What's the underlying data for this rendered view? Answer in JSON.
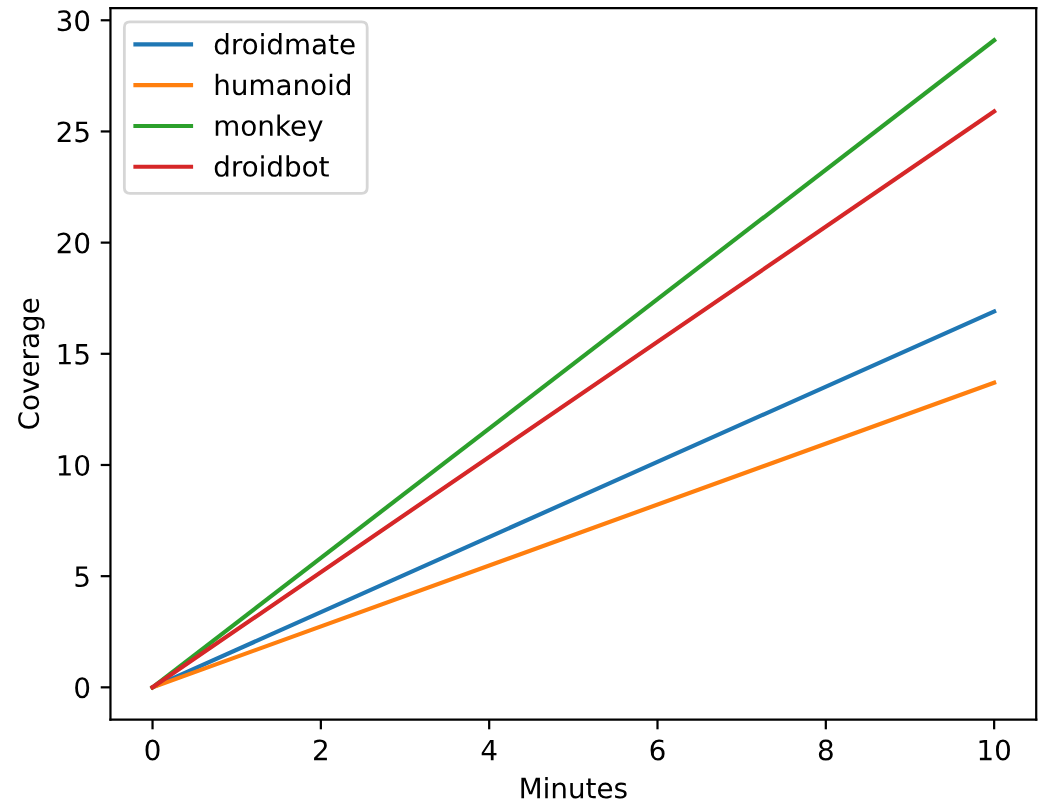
{
  "chart_data": {
    "type": "line",
    "xlabel": "Minutes",
    "ylabel": "Coverage",
    "x": [
      0,
      10
    ],
    "series": [
      {
        "name": "droidmate",
        "color": "#1f77b4",
        "values": [
          0,
          16.9
        ]
      },
      {
        "name": "humanoid",
        "color": "#ff7f0e",
        "values": [
          0,
          13.7
        ]
      },
      {
        "name": "monkey",
        "color": "#2ca02c",
        "values": [
          0,
          29.1
        ]
      },
      {
        "name": "droidbot",
        "color": "#d62728",
        "values": [
          0,
          25.9
        ]
      }
    ],
    "xlim": [
      -0.5,
      10.5
    ],
    "xticks": [
      0,
      2,
      4,
      6,
      8,
      10
    ],
    "ylim": [
      -1.45,
      30.55
    ],
    "yticks": [
      0,
      5,
      10,
      15,
      20,
      25,
      30
    ],
    "grid": false,
    "legend": "top left",
    "marker": "none",
    "line_style": "solid"
  }
}
